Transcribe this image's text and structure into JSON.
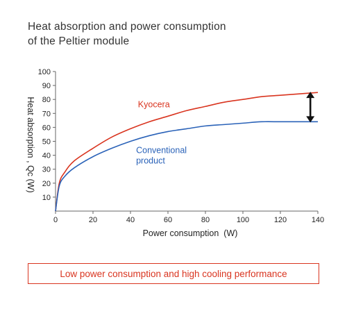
{
  "title_line1": "Heat absorption and power consumption",
  "title_line2": "of the Peltier module",
  "banner_text": "Low power consumption and high cooling performance",
  "chart_data": {
    "type": "line",
    "xlabel": "Power consumption  (W)",
    "ylabel": "Heat absorption , Qc (W)",
    "xlim": [
      0,
      140
    ],
    "ylim": [
      0,
      100
    ],
    "xticks": [
      0,
      20,
      40,
      60,
      80,
      100,
      120,
      140
    ],
    "yticks": [
      10,
      20,
      30,
      40,
      50,
      60,
      70,
      80,
      90,
      100
    ],
    "grid": false,
    "series": [
      {
        "name": "Kyocera",
        "color": "#d9341f",
        "x": [
          0,
          2,
          5,
          10,
          20,
          30,
          40,
          50,
          60,
          70,
          80,
          90,
          100,
          110,
          120,
          130,
          140
        ],
        "y": [
          0,
          20,
          28,
          36,
          45,
          53,
          59,
          64,
          68,
          72,
          75,
          78,
          80,
          82,
          83,
          84,
          85
        ]
      },
      {
        "name": "Conventional product",
        "name_lines": [
          "Conventional",
          "product"
        ],
        "color": "#2a62b8",
        "x": [
          0,
          2,
          5,
          10,
          20,
          30,
          40,
          50,
          60,
          70,
          80,
          90,
          100,
          110,
          120,
          130,
          140
        ],
        "y": [
          0,
          18,
          25,
          31,
          39,
          45,
          50,
          54,
          57,
          59,
          61,
          62,
          63,
          64,
          64,
          64,
          64
        ]
      }
    ],
    "annotation": {
      "type": "double-arrow",
      "x": 136,
      "y_from": 64,
      "y_to": 85,
      "color": "#111111"
    }
  }
}
